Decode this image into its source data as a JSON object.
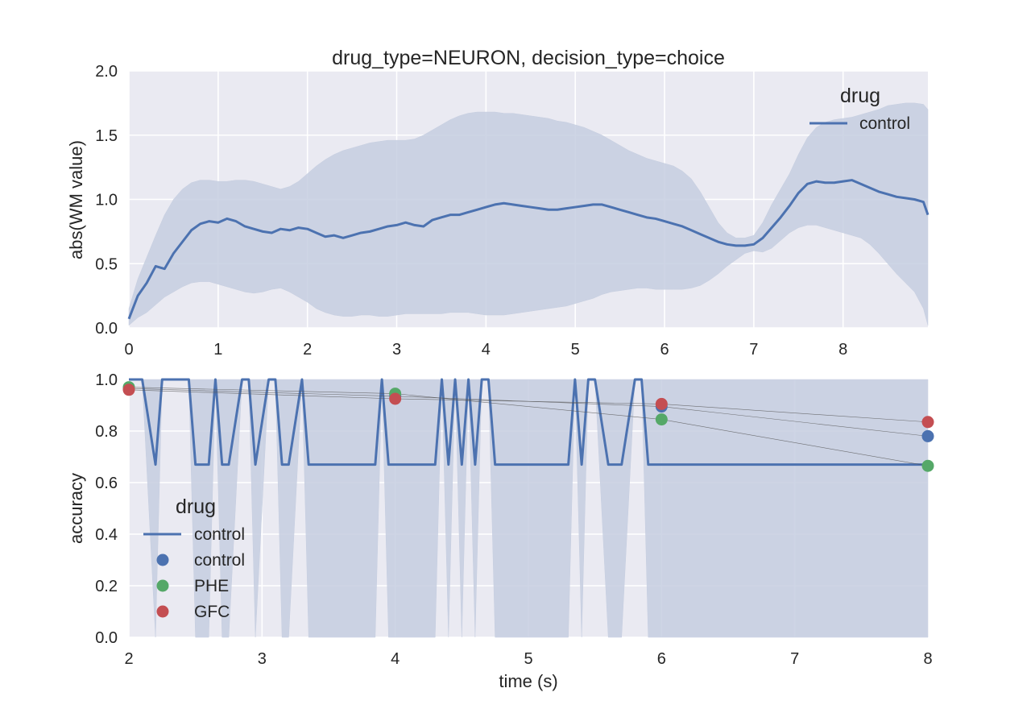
{
  "chart_data": [
    {
      "type": "line",
      "title": "drug_type=NEURON, decision_type=choice",
      "xlabel": "",
      "ylabel": "abs(WM value)",
      "xlim": [
        0,
        8.95
      ],
      "ylim": [
        0,
        2.0
      ],
      "x_ticks": [
        "0",
        "1",
        "2",
        "3",
        "4",
        "5",
        "6",
        "7",
        "8"
      ],
      "y_ticks": [
        "0.0",
        "0.5",
        "1.0",
        "1.5",
        "2.0"
      ],
      "grid": true,
      "legend": {
        "title": "drug",
        "placement": "top-right",
        "entries": [
          "control"
        ]
      },
      "series": [
        {
          "name": "control",
          "x": [
            0.0,
            0.1,
            0.2,
            0.3,
            0.4,
            0.5,
            0.6,
            0.7,
            0.8,
            0.9,
            1.0,
            1.1,
            1.2,
            1.3,
            1.4,
            1.5,
            1.6,
            1.7,
            1.8,
            1.9,
            2.0,
            2.1,
            2.2,
            2.3,
            2.4,
            2.5,
            2.6,
            2.7,
            2.8,
            2.9,
            3.0,
            3.1,
            3.2,
            3.3,
            3.4,
            3.5,
            3.6,
            3.7,
            3.8,
            3.9,
            4.0,
            4.1,
            4.2,
            4.3,
            4.4,
            4.5,
            4.6,
            4.7,
            4.8,
            4.9,
            5.0,
            5.1,
            5.2,
            5.3,
            5.4,
            5.5,
            5.6,
            5.7,
            5.8,
            5.9,
            6.0,
            6.1,
            6.2,
            6.3,
            6.4,
            6.5,
            6.6,
            6.7,
            6.8,
            6.9,
            7.0,
            7.1,
            7.2,
            7.3,
            7.4,
            7.5,
            7.6,
            7.7,
            7.8,
            7.9,
            8.0,
            8.1,
            8.2,
            8.3,
            8.4,
            8.5,
            8.6,
            8.7,
            8.8,
            8.9,
            8.95
          ],
          "y": [
            0.07,
            0.25,
            0.35,
            0.48,
            0.46,
            0.58,
            0.67,
            0.76,
            0.81,
            0.83,
            0.82,
            0.85,
            0.83,
            0.79,
            0.77,
            0.75,
            0.74,
            0.77,
            0.76,
            0.78,
            0.77,
            0.74,
            0.71,
            0.72,
            0.7,
            0.72,
            0.74,
            0.75,
            0.77,
            0.79,
            0.8,
            0.82,
            0.8,
            0.79,
            0.84,
            0.86,
            0.88,
            0.88,
            0.9,
            0.92,
            0.94,
            0.96,
            0.97,
            0.96,
            0.95,
            0.94,
            0.93,
            0.92,
            0.92,
            0.93,
            0.94,
            0.95,
            0.96,
            0.96,
            0.94,
            0.92,
            0.9,
            0.88,
            0.86,
            0.85,
            0.83,
            0.81,
            0.79,
            0.76,
            0.73,
            0.7,
            0.67,
            0.65,
            0.64,
            0.64,
            0.65,
            0.7,
            0.78,
            0.86,
            0.95,
            1.05,
            1.12,
            1.14,
            1.13,
            1.13,
            1.14,
            1.15,
            1.12,
            1.09,
            1.06,
            1.04,
            1.02,
            1.01,
            1.0,
            0.98,
            0.88
          ],
          "ci_low": [
            0.02,
            0.08,
            0.12,
            0.18,
            0.24,
            0.28,
            0.32,
            0.35,
            0.36,
            0.36,
            0.34,
            0.32,
            0.3,
            0.28,
            0.27,
            0.28,
            0.3,
            0.31,
            0.28,
            0.24,
            0.2,
            0.15,
            0.12,
            0.1,
            0.09,
            0.09,
            0.1,
            0.1,
            0.09,
            0.09,
            0.1,
            0.11,
            0.11,
            0.11,
            0.11,
            0.11,
            0.12,
            0.12,
            0.12,
            0.11,
            0.1,
            0.1,
            0.1,
            0.11,
            0.12,
            0.13,
            0.14,
            0.15,
            0.16,
            0.17,
            0.19,
            0.21,
            0.23,
            0.26,
            0.28,
            0.29,
            0.3,
            0.31,
            0.31,
            0.3,
            0.3,
            0.3,
            0.3,
            0.31,
            0.33,
            0.37,
            0.42,
            0.48,
            0.53,
            0.58,
            0.6,
            0.59,
            0.62,
            0.68,
            0.74,
            0.78,
            0.8,
            0.8,
            0.78,
            0.76,
            0.74,
            0.72,
            0.7,
            0.65,
            0.58,
            0.5,
            0.42,
            0.35,
            0.28,
            0.15,
            0.02
          ],
          "ci_high": [
            0.15,
            0.38,
            0.55,
            0.72,
            0.88,
            1.0,
            1.08,
            1.13,
            1.15,
            1.15,
            1.14,
            1.14,
            1.15,
            1.15,
            1.14,
            1.12,
            1.1,
            1.08,
            1.1,
            1.14,
            1.2,
            1.26,
            1.31,
            1.35,
            1.38,
            1.4,
            1.42,
            1.44,
            1.45,
            1.46,
            1.46,
            1.46,
            1.47,
            1.5,
            1.54,
            1.58,
            1.62,
            1.65,
            1.67,
            1.68,
            1.68,
            1.68,
            1.67,
            1.67,
            1.66,
            1.65,
            1.64,
            1.63,
            1.61,
            1.6,
            1.58,
            1.56,
            1.53,
            1.5,
            1.46,
            1.42,
            1.38,
            1.35,
            1.32,
            1.3,
            1.28,
            1.26,
            1.22,
            1.16,
            1.06,
            0.94,
            0.82,
            0.74,
            0.7,
            0.7,
            0.72,
            0.82,
            0.96,
            1.08,
            1.2,
            1.35,
            1.48,
            1.56,
            1.6,
            1.62,
            1.63,
            1.64,
            1.66,
            1.68,
            1.7,
            1.73,
            1.74,
            1.75,
            1.75,
            1.74,
            1.7
          ]
        }
      ]
    },
    {
      "type": "line",
      "title": "",
      "xlabel": "time (s)",
      "ylabel": "accuracy",
      "xlim": [
        2,
        8
      ],
      "ylim": [
        0,
        1.0
      ],
      "x_ticks": [
        "2",
        "3",
        "4",
        "5",
        "6",
        "7",
        "8"
      ],
      "y_ticks": [
        "0.0",
        "0.2",
        "0.4",
        "0.6",
        "0.8",
        "1.0"
      ],
      "grid": true,
      "legend": {
        "title": "drug",
        "placement": "center-left",
        "entries": [
          "control",
          "control",
          "PHE",
          "GFC"
        ]
      },
      "series": [
        {
          "name": "control",
          "kind": "line",
          "x": [
            2.0,
            2.1,
            2.2,
            2.25,
            2.45,
            2.5,
            2.6,
            2.65,
            2.7,
            2.75,
            2.85,
            2.9,
            2.95,
            3.05,
            3.1,
            3.15,
            3.2,
            3.3,
            3.35,
            3.4,
            3.45,
            3.5,
            3.85,
            3.9,
            3.95,
            4.05,
            4.3,
            4.35,
            4.4,
            4.45,
            4.5,
            4.55,
            4.6,
            4.65,
            4.7,
            4.75,
            5.3,
            5.35,
            5.4,
            5.45,
            5.5,
            5.6,
            5.65,
            5.7,
            5.8,
            5.85,
            5.9,
            8.0
          ],
          "y": [
            1.0,
            1.0,
            0.67,
            1.0,
            1.0,
            0.67,
            0.67,
            1.0,
            0.67,
            0.67,
            1.0,
            1.0,
            0.67,
            1.0,
            1.0,
            0.67,
            0.67,
            1.0,
            0.67,
            0.67,
            0.67,
            0.67,
            0.67,
            1.0,
            0.67,
            0.67,
            0.67,
            1.0,
            0.67,
            1.0,
            0.67,
            1.0,
            0.67,
            1.0,
            1.0,
            0.67,
            0.67,
            1.0,
            0.67,
            1.0,
            1.0,
            0.67,
            0.67,
            0.67,
            1.0,
            1.0,
            0.67,
            0.67
          ],
          "ci_low": [
            1.0,
            1.0,
            0.0,
            1.0,
            1.0,
            0.0,
            0.0,
            1.0,
            0.0,
            0.0,
            1.0,
            1.0,
            0.0,
            1.0,
            1.0,
            0.0,
            0.0,
            1.0,
            0.0,
            0.0,
            0.0,
            0.0,
            0.0,
            1.0,
            0.0,
            0.0,
            0.0,
            1.0,
            0.0,
            1.0,
            0.0,
            1.0,
            0.0,
            1.0,
            1.0,
            0.0,
            0.0,
            1.0,
            0.0,
            1.0,
            1.0,
            0.0,
            0.0,
            0.0,
            1.0,
            1.0,
            0.0,
            0.0
          ],
          "ci_high": [
            1.0,
            1.0,
            1.0,
            1.0,
            1.0,
            1.0,
            1.0,
            1.0,
            1.0,
            1.0,
            1.0,
            1.0,
            1.0,
            1.0,
            1.0,
            1.0,
            1.0,
            1.0,
            1.0,
            1.0,
            1.0,
            1.0,
            1.0,
            1.0,
            1.0,
            1.0,
            1.0,
            1.0,
            1.0,
            1.0,
            1.0,
            1.0,
            1.0,
            1.0,
            1.0,
            1.0,
            1.0,
            1.0,
            1.0,
            1.0,
            1.0,
            1.0,
            1.0,
            1.0,
            1.0,
            1.0,
            1.0,
            1.0
          ]
        },
        {
          "name": "control",
          "kind": "points",
          "x": [
            2,
            4,
            6,
            8
          ],
          "y": [
            0.965,
            0.935,
            0.895,
            0.78
          ]
        },
        {
          "name": "PHE",
          "kind": "points",
          "x": [
            2,
            4,
            6,
            8
          ],
          "y": [
            0.97,
            0.945,
            0.845,
            0.665
          ]
        },
        {
          "name": "GFC",
          "kind": "points",
          "x": [
            2,
            4,
            6,
            8
          ],
          "y": [
            0.96,
            0.925,
            0.905,
            0.835
          ]
        }
      ]
    }
  ],
  "colors": {
    "plot_bg": "#EAEAF2",
    "grid": "#FFFFFF",
    "line": "#4C72B0",
    "band": "#C6CEE0",
    "control_marker": "#4C72B0",
    "phe_marker": "#55A868",
    "gfc_marker": "#C44E52",
    "connector": "#555555"
  }
}
